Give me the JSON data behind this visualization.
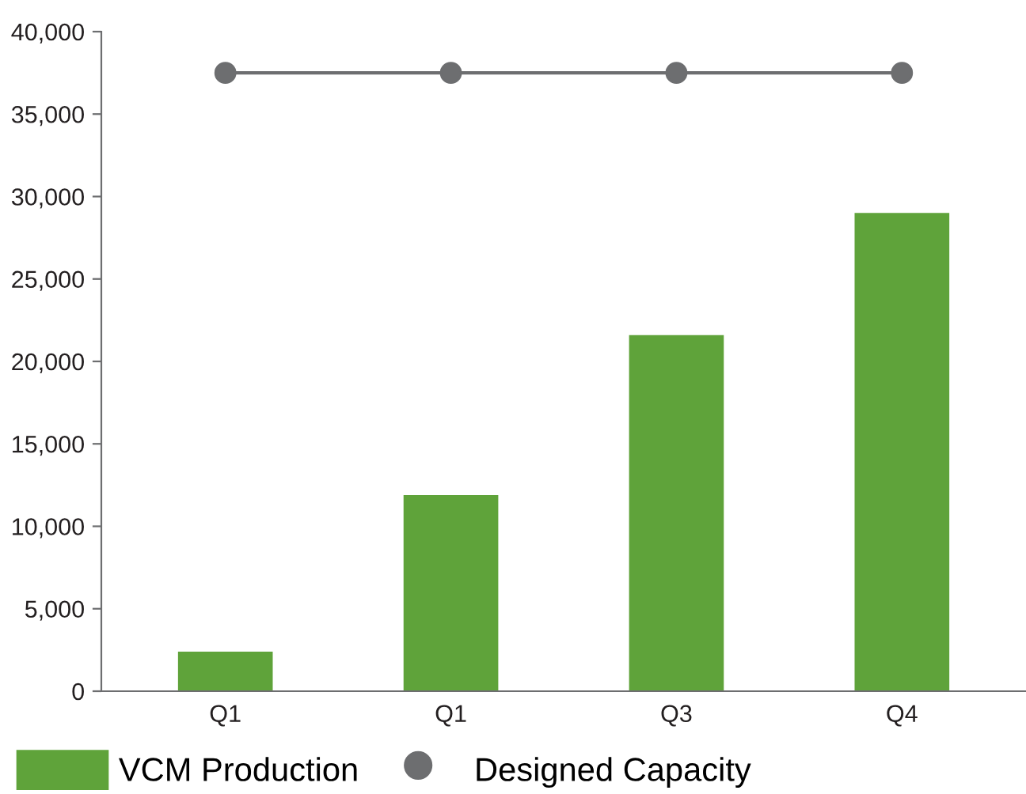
{
  "chart_data": {
    "type": "bar",
    "categories": [
      "Q1",
      "Q1",
      "Q3",
      "Q4"
    ],
    "series": [
      {
        "name": "VCM Production",
        "color": "#5fa33a",
        "values": [
          2400,
          11900,
          21600,
          29000
        ]
      },
      {
        "name": "Designed Capacity",
        "type": "line",
        "color": "#6d6e70",
        "values": [
          37500,
          37500,
          37500,
          37500
        ]
      }
    ],
    "ylim": [
      0,
      40000
    ],
    "yticks": [
      {
        "value": 0,
        "label": "0"
      },
      {
        "value": 5000,
        "label": "5,000"
      },
      {
        "value": 10000,
        "label": "10,000"
      },
      {
        "value": 15000,
        "label": "15,000"
      },
      {
        "value": 20000,
        "label": "20,000"
      },
      {
        "value": 25000,
        "label": "25,000"
      },
      {
        "value": 30000,
        "label": "30,000"
      },
      {
        "value": 35000,
        "label": "35,000"
      },
      {
        "value": 40000,
        "label": "40,000"
      }
    ],
    "marker": "circle",
    "legend": "bottom",
    "grid": false
  }
}
